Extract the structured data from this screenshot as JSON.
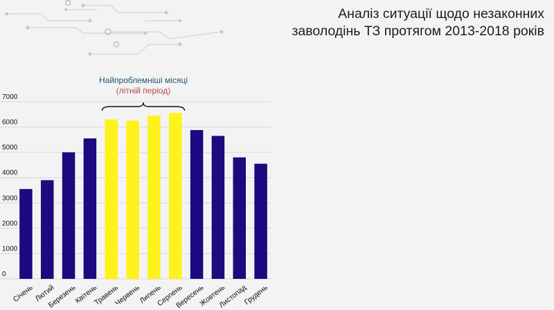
{
  "slide": {
    "title_line1": "Аналіз ситуації щодо незаконних",
    "title_line2": "заволодінь ТЗ протягом 2013-2018 років"
  },
  "chart_data": {
    "type": "bar",
    "categories": [
      "Січень",
      "Лютий",
      "Березень",
      "Квітень",
      "Травень",
      "Червень",
      "Липень",
      "Серпень",
      "Вересень",
      "Жовтень",
      "Листопад",
      "Грудень"
    ],
    "values": [
      3550,
      3900,
      5000,
      5550,
      6300,
      6250,
      6450,
      6550,
      5880,
      5650,
      4800,
      4550
    ],
    "highlight_indices": [
      4,
      5,
      6,
      7
    ],
    "colors": {
      "normal": "#1b0a80",
      "highlight": "#fff21c"
    },
    "ylim": [
      0,
      7000
    ],
    "yticks": [
      0,
      1000,
      2000,
      3000,
      4000,
      5000,
      6000,
      7000
    ],
    "grid": true,
    "annotation": {
      "line1": "Найпроблемніші місяці",
      "line2": "(літній період)"
    }
  }
}
